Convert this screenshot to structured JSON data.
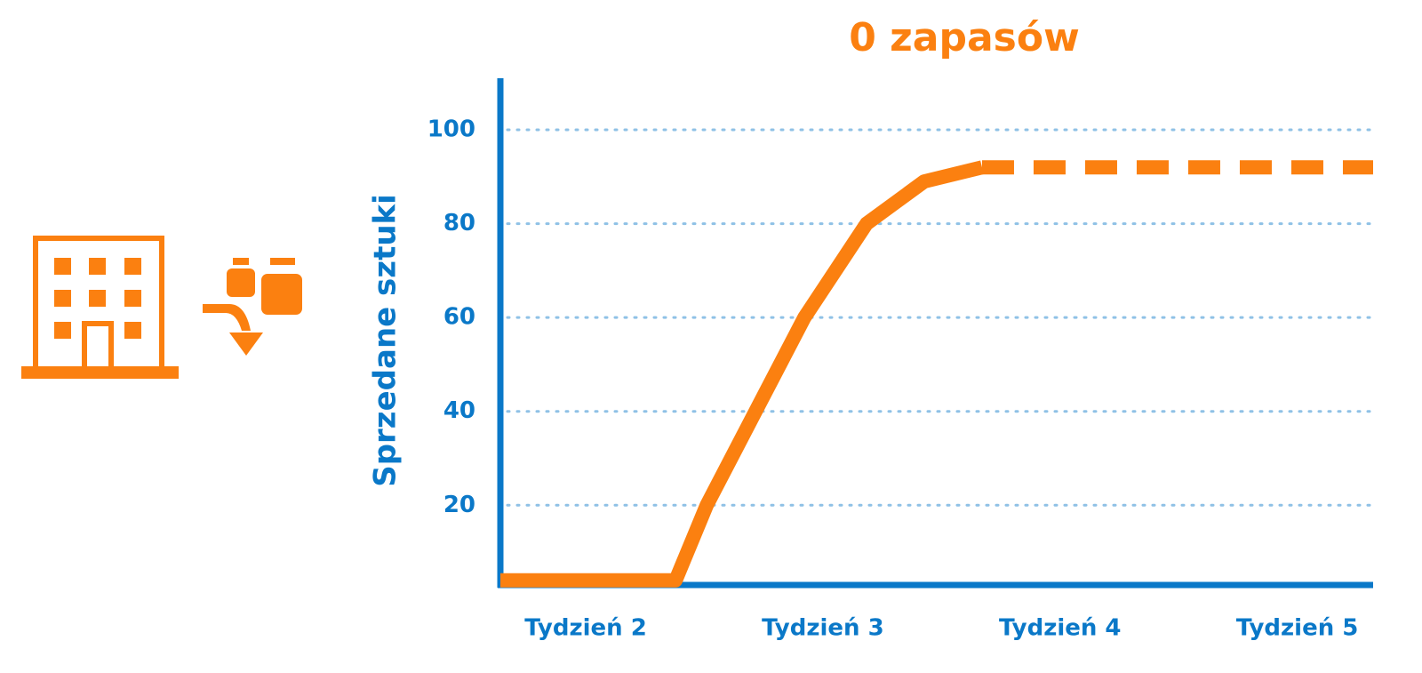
{
  "chart_data": {
    "type": "line",
    "title": "0 zapasów",
    "ylabel": "Sprzedane sztuki",
    "xlim": [
      1.64,
      5.32
    ],
    "xticks": [
      {
        "value": 2,
        "label": "Tydzień 2"
      },
      {
        "value": 3,
        "label": "Tydzień 3"
      },
      {
        "value": 4,
        "label": "Tydzień 4"
      },
      {
        "value": 5,
        "label": "Tydzień 5"
      }
    ],
    "ylim": [
      3,
      111
    ],
    "yticks": [
      20,
      40,
      60,
      80,
      100
    ],
    "grid": true,
    "series": [
      {
        "color": "#fb8010",
        "dashed": false,
        "x": [
          1.64,
          2.379,
          2.51,
          2.716,
          2.922,
          3.184,
          3.427,
          3.671
        ],
        "values": [
          4,
          4,
          20,
          40,
          60,
          80,
          89,
          92
        ]
      },
      {
        "color": "#fb8010",
        "dashed": true,
        "x": [
          3.671,
          5.32
        ],
        "values": [
          92,
          92
        ]
      }
    ]
  }
}
